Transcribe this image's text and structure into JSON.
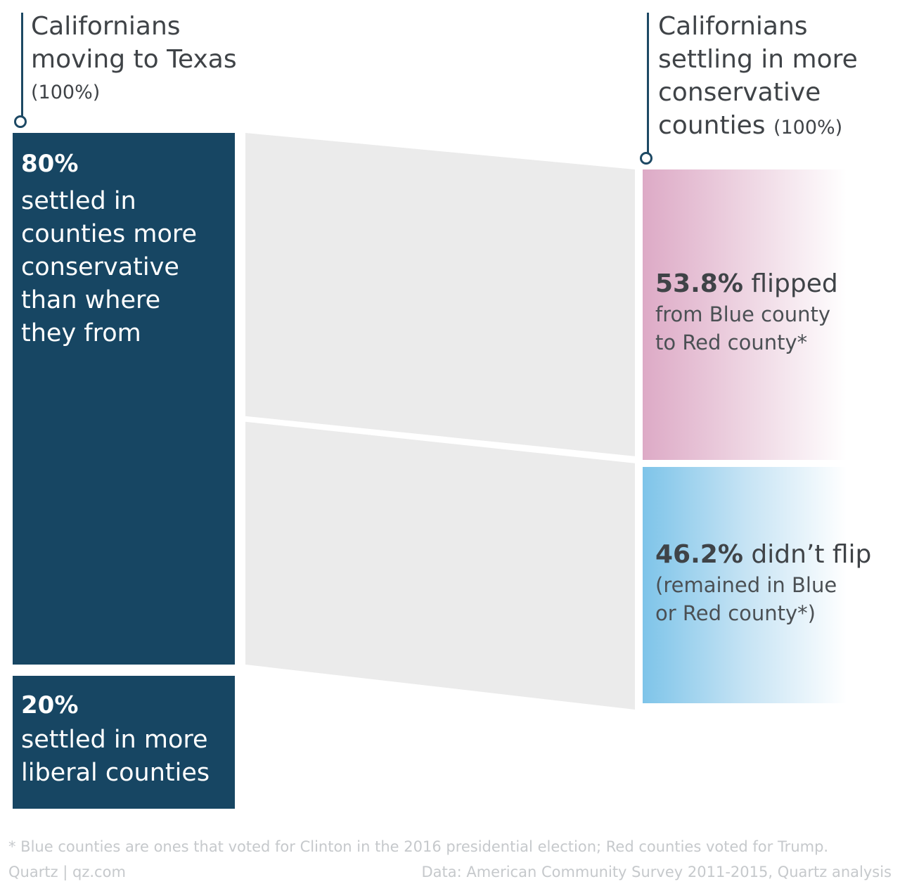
{
  "chart_data": {
    "type": "sankey",
    "source_column": {
      "title": "Californians moving to Texas",
      "total": "(100%)",
      "nodes": [
        {
          "value": 80,
          "percent_label": "80%",
          "lines": [
            "settled in",
            "counties more",
            "conservative",
            "than where",
            "they from"
          ]
        },
        {
          "value": 20,
          "percent_label": "20%",
          "lines": [
            "settled in more",
            "liberal counties"
          ]
        }
      ]
    },
    "target_column": {
      "title_lines": [
        "Californians",
        "settling in more",
        "conservative"
      ],
      "title_last": "counties",
      "total": "(100%)",
      "nodes": [
        {
          "value": 53.8,
          "percent_label": "53.8%",
          "label": "flipped",
          "lines": [
            "from Blue county",
            "to Red county*"
          ],
          "color": "#ddaac6"
        },
        {
          "value": 46.2,
          "percent_label": "46.2%",
          "label": "didn’t flip",
          "lines": [
            "(remained in Blue",
            "or Red county*)"
          ],
          "color": "#7ec4e9"
        }
      ]
    },
    "flows": [
      {
        "from": 0,
        "to": 0,
        "value": 53.8
      },
      {
        "from": 0,
        "to": 1,
        "value": 46.2
      }
    ],
    "colors": {
      "source": "#174663",
      "flow": "#ebebeb"
    }
  },
  "footer": {
    "note": "* Blue counties are ones that voted for Clinton in the 2016 presidential election; Red counties voted for Trump.",
    "credit": "Quartz | qz.com",
    "source": "Data: American Community Survey 2011-2015, Quartz analysis"
  }
}
